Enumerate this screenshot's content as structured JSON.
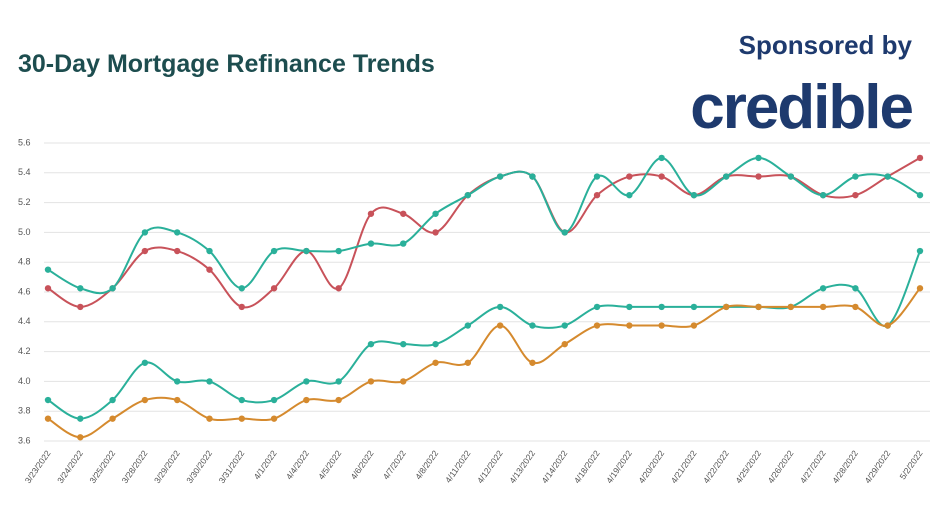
{
  "chart_data": {
    "type": "line",
    "title": "30-Day Mortgage Refinance Trends",
    "categories": [
      "3/23/2022",
      "3/24/2022",
      "3/25/2022",
      "3/28/2022",
      "3/29/2022",
      "3/30/2022",
      "3/31/2022",
      "4/1/2022",
      "4/4/2022",
      "4/5/2022",
      "4/6/2022",
      "4/7/2022",
      "4/8/2022",
      "4/11/2022",
      "4/12/2022",
      "4/13/2022",
      "4/14/2022",
      "4/18/2022",
      "4/19/2022",
      "4/20/2022",
      "4/21/2022",
      "4/22/2022",
      "4/25/2022",
      "4/26/2022",
      "4/27/2022",
      "4/28/2022",
      "4/29/2022",
      "5/2/2022"
    ],
    "series": [
      {
        "color": "#c8525a",
        "values": [
          4.625,
          4.5,
          4.625,
          4.875,
          4.875,
          4.75,
          4.5,
          4.625,
          4.875,
          4.625,
          5.125,
          5.125,
          5.0,
          5.25,
          5.375,
          5.375,
          5.0,
          5.25,
          5.375,
          5.375,
          5.25,
          5.375,
          5.375,
          5.375,
          5.25,
          5.25,
          5.375,
          5.5
        ]
      },
      {
        "color": "#2ab09a",
        "values": [
          4.75,
          4.625,
          4.625,
          5.0,
          5.0,
          4.875,
          4.625,
          4.875,
          4.875,
          4.875,
          4.925,
          4.925,
          5.125,
          5.25,
          5.375,
          5.375,
          5.0,
          5.375,
          5.25,
          5.5,
          5.25,
          5.375,
          5.5,
          5.375,
          5.25,
          5.375,
          5.375,
          5.25
        ]
      },
      {
        "color": "#2ab09a",
        "values": [
          3.875,
          3.75,
          3.875,
          4.125,
          4.0,
          4.0,
          3.875,
          3.875,
          4.0,
          4.0,
          4.25,
          4.25,
          4.25,
          4.375,
          4.5,
          4.375,
          4.375,
          4.5,
          4.5,
          4.5,
          4.5,
          4.5,
          4.5,
          4.5,
          4.625,
          4.625,
          4.375,
          4.875
        ]
      },
      {
        "color": "#d58a2e",
        "values": [
          3.75,
          3.625,
          3.75,
          3.875,
          3.875,
          3.75,
          3.75,
          3.75,
          3.875,
          3.875,
          4.0,
          4.0,
          4.125,
          4.125,
          4.375,
          4.125,
          4.25,
          4.375,
          4.375,
          4.375,
          4.375,
          4.5,
          4.5,
          4.5,
          4.5,
          4.5,
          4.375,
          4.625
        ]
      }
    ],
    "ylim": [
      3.6,
      5.6
    ],
    "yticks": [
      3.6,
      3.8,
      {
        "value": 4.0,
        "label": "4.0"
      },
      4.2,
      4.4,
      4.6,
      4.8,
      {
        "value": 5.0,
        "label": "5.0"
      },
      5.2,
      5.4,
      5.6
    ],
    "grid": true
  },
  "sponsor": {
    "label": "Sponsored by",
    "logo": "credible"
  }
}
